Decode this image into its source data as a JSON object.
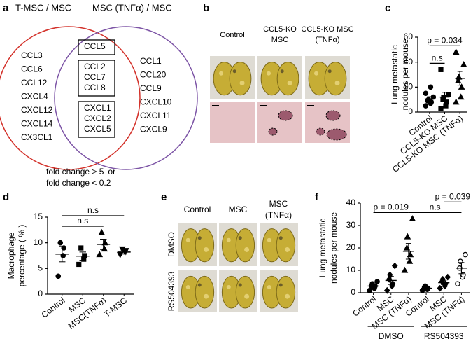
{
  "panel_labels": [
    "a",
    "b",
    "c",
    "d",
    "e",
    "f"
  ],
  "venn": {
    "left_title": "T-MSC / MSC",
    "left_color": "#d3312a",
    "right_title": "MSC (TNFα) / MSC",
    "right_color": "#7d55a6",
    "left_genes": [
      {
        "text": "CCL3",
        "color": "#d3312a"
      },
      {
        "text": "CCL6",
        "color": "#d3312a"
      },
      {
        "text": "CCL12",
        "color": "#d3312a"
      },
      {
        "text": "CXCL4",
        "color": "#d3312a"
      },
      {
        "text": "CXCL12",
        "color": "#1ba1d9"
      },
      {
        "text": "CXCL14",
        "color": "#d3312a"
      },
      {
        "text": "CX3CL1",
        "color": "#1ba1d9"
      }
    ],
    "shared_boxes": [
      [
        {
          "text": "CCL5",
          "color": "#d3312a"
        }
      ],
      [
        {
          "text": "CCL2",
          "color": "#d3312a"
        },
        {
          "text": "CCL7",
          "color": "#d3312a"
        },
        {
          "text": "CCL8",
          "color": "#d3312a"
        }
      ],
      [
        {
          "text": "CXCL1",
          "color": "#d3312a"
        },
        {
          "text": "CXCL2",
          "color": "#d3312a"
        },
        {
          "text": "CXCL5",
          "color": "#d3312a"
        }
      ]
    ],
    "right_genes": [
      {
        "text": "CCL1",
        "color": "#d3312a"
      },
      {
        "text": "CCL20",
        "color": "#d3312a"
      },
      {
        "text": "CCL9",
        "color": "#d3312a"
      },
      {
        "text": "CXCL10",
        "color": "#d3312a"
      },
      {
        "text": "CXCL11",
        "color": "#d3312a"
      },
      {
        "text": "CXCL9",
        "color": "#d3312a"
      }
    ],
    "legend": [
      {
        "text": "fold change > 5",
        "color": "#d3312a"
      },
      {
        "text": "or",
        "color": "#000000"
      },
      {
        "text": "fold change < 0.2",
        "color": "#1ba1d9"
      }
    ]
  },
  "panel_b": {
    "columns": [
      [
        "Control"
      ],
      [
        "CCL5-KO",
        "MSC"
      ],
      [
        "CCL5-KO MSC",
        "(TNFα)"
      ]
    ]
  },
  "panel_e": {
    "columns": [
      [
        "Control"
      ],
      [
        "MSC"
      ],
      [
        "MSC",
        "(TNFα)"
      ]
    ],
    "rows": [
      "DMSO",
      "RS504393"
    ]
  },
  "chart_data": [
    {
      "type": "dot",
      "ylabel": [
        "Lung metastatic",
        "nodules per mouse"
      ],
      "categories": [
        "Control",
        "CCL5-KO MSC",
        "CCL5-KO MSC (TNFα)"
      ],
      "ylim": [
        0,
        60
      ],
      "yticks": [
        0,
        20,
        40,
        60
      ],
      "color": "#000000",
      "groups": [
        {
          "values": [
            5,
            7,
            8,
            9,
            10,
            12,
            15,
            20
          ],
          "mean": 10.5,
          "sem": 1.8,
          "marker": "circle",
          "filled": true
        },
        {
          "values": [
            3,
            5,
            8,
            10,
            12,
            14,
            34
          ],
          "mean": 12,
          "sem": 3.8,
          "marker": "square",
          "filled": true
        },
        {
          "values": [
            8,
            12,
            20,
            25,
            28,
            38,
            48
          ],
          "mean": 27,
          "sem": 5.5,
          "marker": "triangle",
          "filled": true
        }
      ],
      "comparisons": [
        {
          "label": "n.s",
          "from": 0,
          "to": 1
        },
        {
          "label": "p = 0.034",
          "from": 0,
          "to": 2
        }
      ]
    },
    {
      "type": "dot",
      "ylabel": [
        "Macrophage",
        "percentage ( % )"
      ],
      "categories": [
        "Control",
        "MSC",
        "MSC(TNFα)",
        "T-MSC"
      ],
      "ylim": [
        0,
        15
      ],
      "yticks": [
        0,
        5,
        10,
        15
      ],
      "color": "#000000",
      "groups": [
        {
          "values": [
            3.5,
            7.5,
            9,
            10
          ],
          "mean": 7.8,
          "sem": 1.5,
          "marker": "circle",
          "filled": true
        },
        {
          "values": [
            5.8,
            6.8,
            7.5,
            9
          ],
          "mean": 7.4,
          "sem": 0.8,
          "marker": "square",
          "filled": true
        },
        {
          "values": [
            7.7,
            8.8,
            10,
            12
          ],
          "mean": 9.7,
          "sem": 1,
          "marker": "triangle",
          "filled": true
        },
        {
          "values": [
            7.7,
            8.2,
            8.5,
            8.8
          ],
          "mean": 8.2,
          "sem": 0.4,
          "marker": "itriangle",
          "filled": true
        }
      ],
      "comparisons": [
        {
          "label": "n.s",
          "from": 0,
          "to": 2
        },
        {
          "label": "n.s",
          "from": 0,
          "to": 3
        }
      ]
    },
    {
      "type": "dot",
      "ylabel": [
        "Lung metastatic",
        "nodules per mouse"
      ],
      "categories": [
        "Control",
        "MSC",
        "MSC (TNFα)",
        "Control",
        "MSC",
        "MSC (TNFα)"
      ],
      "ylim": [
        0,
        40
      ],
      "yticks": [
        0,
        10,
        20,
        30,
        40
      ],
      "color": "#000000",
      "groups": [
        {
          "values": [
            1,
            2,
            3,
            3,
            4,
            5
          ],
          "mean": 3,
          "sem": 0.6,
          "marker": "circle",
          "filled": true
        },
        {
          "values": [
            1,
            3,
            4,
            6,
            8,
            12
          ],
          "mean": 5.5,
          "sem": 1.8,
          "marker": "diamond",
          "filled": true
        },
        {
          "values": [
            10,
            14,
            17,
            20,
            25,
            33
          ],
          "mean": 18.5,
          "sem": 3.5,
          "marker": "triangle",
          "filled": true
        },
        {
          "values": [
            1,
            1.5,
            2,
            2.5,
            3
          ],
          "mean": 2,
          "sem": 0.4,
          "marker": "circle",
          "filled": true
        },
        {
          "values": [
            2,
            3,
            4,
            5,
            6,
            7
          ],
          "mean": 4.5,
          "sem": 0.9,
          "marker": "diamond",
          "filled": true
        },
        {
          "values": [
            4,
            7,
            8,
            11,
            14,
            17
          ],
          "mean": 11,
          "sem": 2.5,
          "marker": "circle",
          "filled": false
        }
      ],
      "comparisons": [
        {
          "label": "p = 0.019",
          "from": 0,
          "to": 2
        },
        {
          "label": "n.s",
          "from": 2,
          "to": 5
        },
        {
          "label": "p = 0.039",
          "from": 4,
          "to": 5
        }
      ],
      "conditions": [
        {
          "label": "DMSO",
          "from": 0,
          "to": 2
        },
        {
          "label": "RS504393",
          "from": 3,
          "to": 5
        }
      ]
    }
  ]
}
